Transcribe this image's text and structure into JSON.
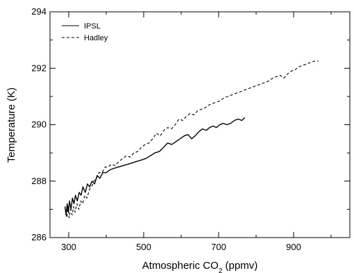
{
  "chart_data": {
    "type": "line",
    "title": "",
    "xlabel": "Atmospheric CO",
    "xlabel_subscript": "2",
    "xlabel_suffix": " (ppmv)",
    "ylabel": "Temperature (K)",
    "xlim": [
      250,
      1050
    ],
    "ylim": [
      286,
      294
    ],
    "x_ticks": [
      300,
      500,
      700,
      900
    ],
    "x_minor_ticks": [
      400,
      600,
      800,
      1000
    ],
    "y_ticks": [
      286,
      288,
      290,
      292,
      294
    ],
    "y_minor_ticks": [
      287,
      289,
      291,
      293
    ],
    "grid": false,
    "legend_position": "top-left",
    "series": [
      {
        "name": "IPSL",
        "style": "solid",
        "color": "#000000",
        "points": [
          [
            290,
            287.1
          ],
          [
            293,
            286.8
          ],
          [
            296,
            287.2
          ],
          [
            299,
            286.9
          ],
          [
            302,
            287.3
          ],
          [
            306,
            287.0
          ],
          [
            310,
            287.4
          ],
          [
            314,
            287.2
          ],
          [
            318,
            287.5
          ],
          [
            323,
            287.3
          ],
          [
            328,
            287.6
          ],
          [
            333,
            287.5
          ],
          [
            338,
            287.8
          ],
          [
            344,
            287.6
          ],
          [
            350,
            287.9
          ],
          [
            356,
            287.8
          ],
          [
            362,
            288.0
          ],
          [
            369,
            287.9
          ],
          [
            376,
            288.2
          ],
          [
            383,
            288.1
          ],
          [
            391,
            288.3
          ],
          [
            400,
            288.3
          ],
          [
            410,
            288.4
          ],
          [
            420,
            288.45
          ],
          [
            432,
            288.5
          ],
          [
            445,
            288.55
          ],
          [
            458,
            288.6
          ],
          [
            470,
            288.65
          ],
          [
            482,
            288.7
          ],
          [
            494,
            288.75
          ],
          [
            506,
            288.8
          ],
          [
            518,
            288.9
          ],
          [
            530,
            289.0
          ],
          [
            542,
            289.05
          ],
          [
            553,
            289.2
          ],
          [
            564,
            289.35
          ],
          [
            575,
            289.3
          ],
          [
            586,
            289.4
          ],
          [
            597,
            289.5
          ],
          [
            608,
            289.6
          ],
          [
            618,
            289.65
          ],
          [
            628,
            289.5
          ],
          [
            637,
            289.6
          ],
          [
            647,
            289.75
          ],
          [
            657,
            289.85
          ],
          [
            667,
            289.8
          ],
          [
            676,
            289.9
          ],
          [
            685,
            289.95
          ],
          [
            694,
            289.9
          ],
          [
            703,
            290.0
          ],
          [
            712,
            290.05
          ],
          [
            722,
            290.0
          ],
          [
            732,
            290.05
          ],
          [
            742,
            290.15
          ],
          [
            752,
            290.2
          ],
          [
            762,
            290.15
          ],
          [
            770,
            290.25
          ]
        ]
      },
      {
        "name": "Hadley",
        "style": "dashed",
        "color": "#000000",
        "points": [
          [
            292,
            287.0
          ],
          [
            295,
            286.7
          ],
          [
            298,
            287.1
          ],
          [
            301,
            286.7
          ],
          [
            305,
            287.0
          ],
          [
            309,
            286.8
          ],
          [
            313,
            287.1
          ],
          [
            317,
            286.9
          ],
          [
            322,
            287.2
          ],
          [
            327,
            287.0
          ],
          [
            332,
            287.3
          ],
          [
            337,
            287.2
          ],
          [
            343,
            287.5
          ],
          [
            349,
            287.4
          ],
          [
            355,
            287.7
          ],
          [
            361,
            287.8
          ],
          [
            367,
            288.0
          ],
          [
            374,
            288.1
          ],
          [
            381,
            288.3
          ],
          [
            389,
            288.3
          ],
          [
            397,
            288.5
          ],
          [
            405,
            288.5
          ],
          [
            414,
            288.6
          ],
          [
            424,
            288.55
          ],
          [
            434,
            288.7
          ],
          [
            444,
            288.8
          ],
          [
            454,
            288.9
          ],
          [
            464,
            288.85
          ],
          [
            474,
            289.0
          ],
          [
            484,
            289.05
          ],
          [
            494,
            289.2
          ],
          [
            504,
            289.3
          ],
          [
            514,
            289.35
          ],
          [
            524,
            289.5
          ],
          [
            534,
            289.7
          ],
          [
            544,
            289.6
          ],
          [
            554,
            289.8
          ],
          [
            564,
            289.9
          ],
          [
            574,
            289.85
          ],
          [
            584,
            290.0
          ],
          [
            594,
            290.2
          ],
          [
            604,
            290.15
          ],
          [
            614,
            290.3
          ],
          [
            624,
            290.4
          ],
          [
            634,
            290.35
          ],
          [
            644,
            290.5
          ],
          [
            654,
            290.55
          ],
          [
            664,
            290.6
          ],
          [
            674,
            290.7
          ],
          [
            684,
            290.75
          ],
          [
            694,
            290.8
          ],
          [
            704,
            290.85
          ],
          [
            714,
            290.95
          ],
          [
            724,
            291.0
          ],
          [
            734,
            291.05
          ],
          [
            744,
            291.1
          ],
          [
            754,
            291.15
          ],
          [
            764,
            291.2
          ],
          [
            774,
            291.25
          ],
          [
            784,
            291.3
          ],
          [
            794,
            291.35
          ],
          [
            804,
            291.4
          ],
          [
            814,
            291.45
          ],
          [
            824,
            291.5
          ],
          [
            834,
            291.55
          ],
          [
            844,
            291.65
          ],
          [
            854,
            291.7
          ],
          [
            864,
            291.75
          ],
          [
            874,
            291.65
          ],
          [
            884,
            291.8
          ],
          [
            894,
            291.9
          ],
          [
            904,
            291.95
          ],
          [
            914,
            292.05
          ],
          [
            924,
            292.1
          ],
          [
            934,
            292.15
          ],
          [
            944,
            292.2
          ],
          [
            954,
            292.25
          ],
          [
            966,
            292.25
          ]
        ]
      }
    ]
  }
}
